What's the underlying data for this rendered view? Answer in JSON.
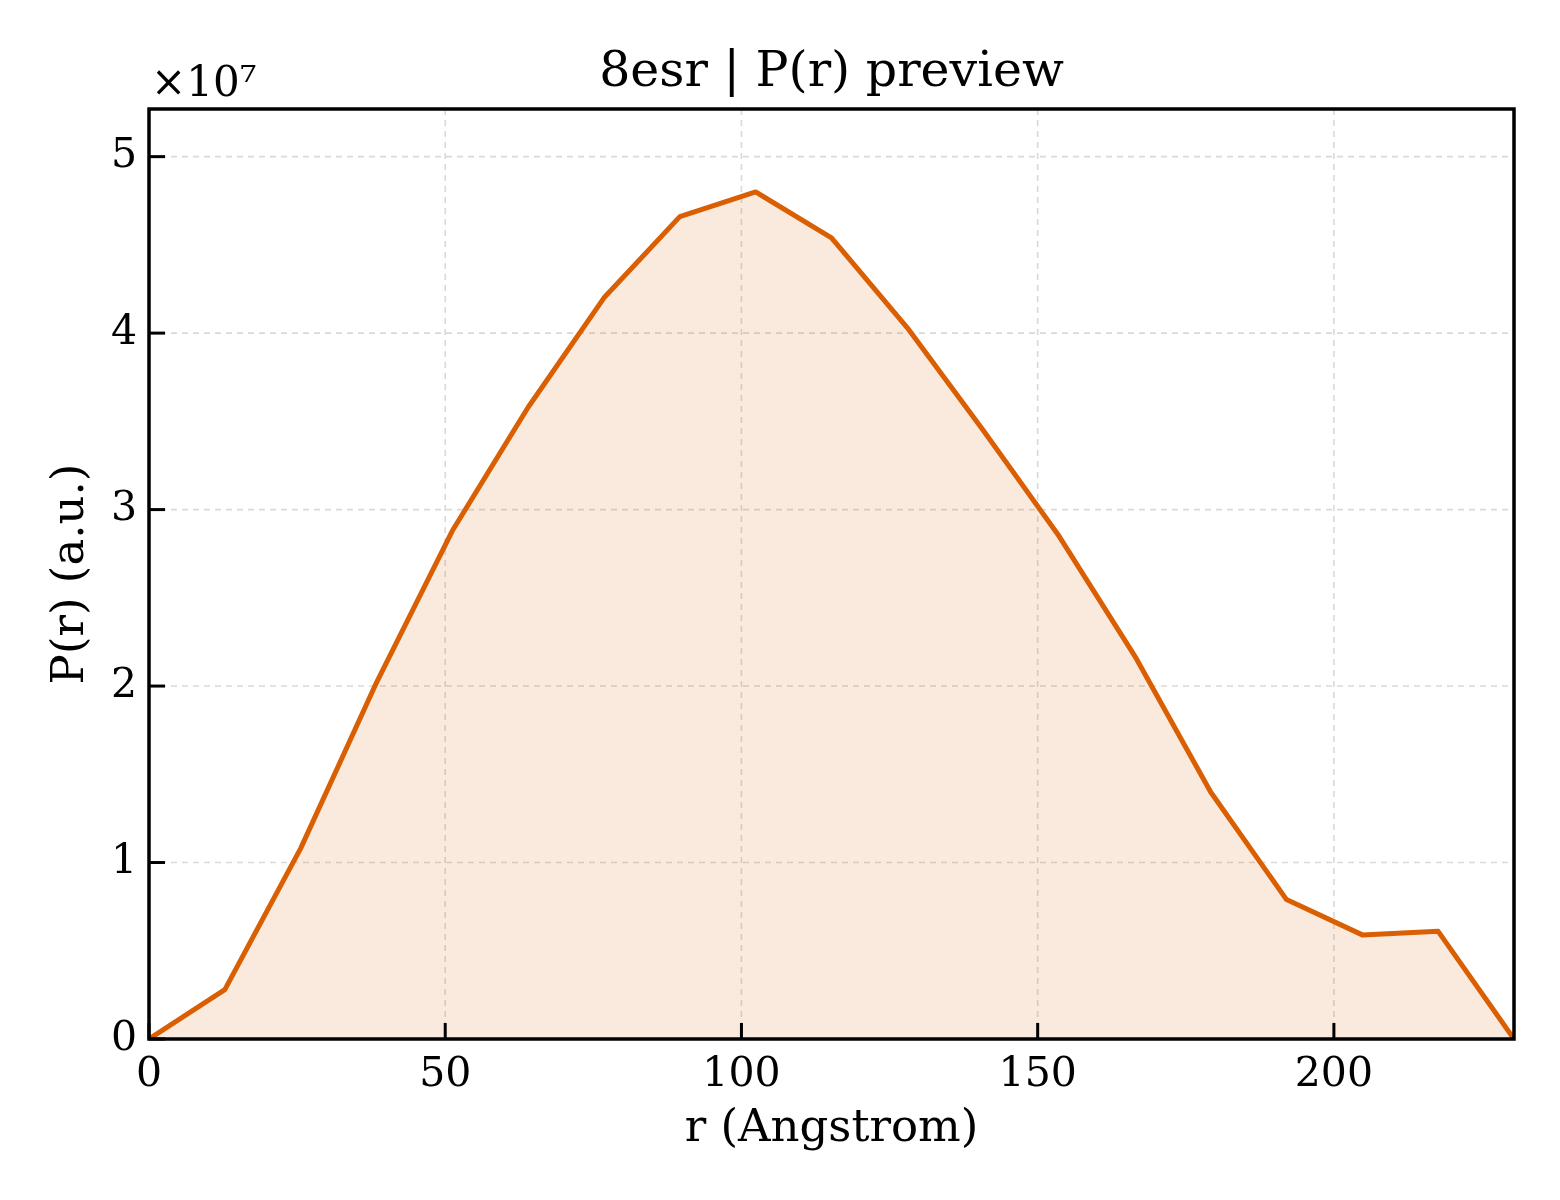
{
  "chart_data": {
    "type": "area",
    "title": "8esr | P(r) preview",
    "xlabel": "r (Angstrom)",
    "ylabel": "P(r) (a.u.)",
    "annotations": [
      "×10⁷"
    ],
    "x": [
      0,
      12.8,
      25.6,
      38.4,
      51.2,
      64,
      76.8,
      89.6,
      102.4,
      115.2,
      128,
      140.8,
      153.6,
      166.4,
      179.2,
      192,
      204.8,
      217.6,
      230.4
    ],
    "series": [
      {
        "color": "#d95f02",
        "values": [
          0,
          0.28,
          1.08,
          2.02,
          2.88,
          3.58,
          4.2,
          4.66,
          4.8,
          4.54,
          4.03,
          3.45,
          2.85,
          2.17,
          1.4,
          0.79,
          0.59,
          0.61,
          0
        ]
      }
    ],
    "xlim": [
      0,
      230.4
    ],
    "xticks": [
      0,
      50,
      100,
      150,
      200
    ],
    "ylim": [
      0,
      5.27
    ],
    "yticks": [
      0,
      1,
      2,
      3,
      4,
      5
    ],
    "grid": true,
    "legend": false
  }
}
